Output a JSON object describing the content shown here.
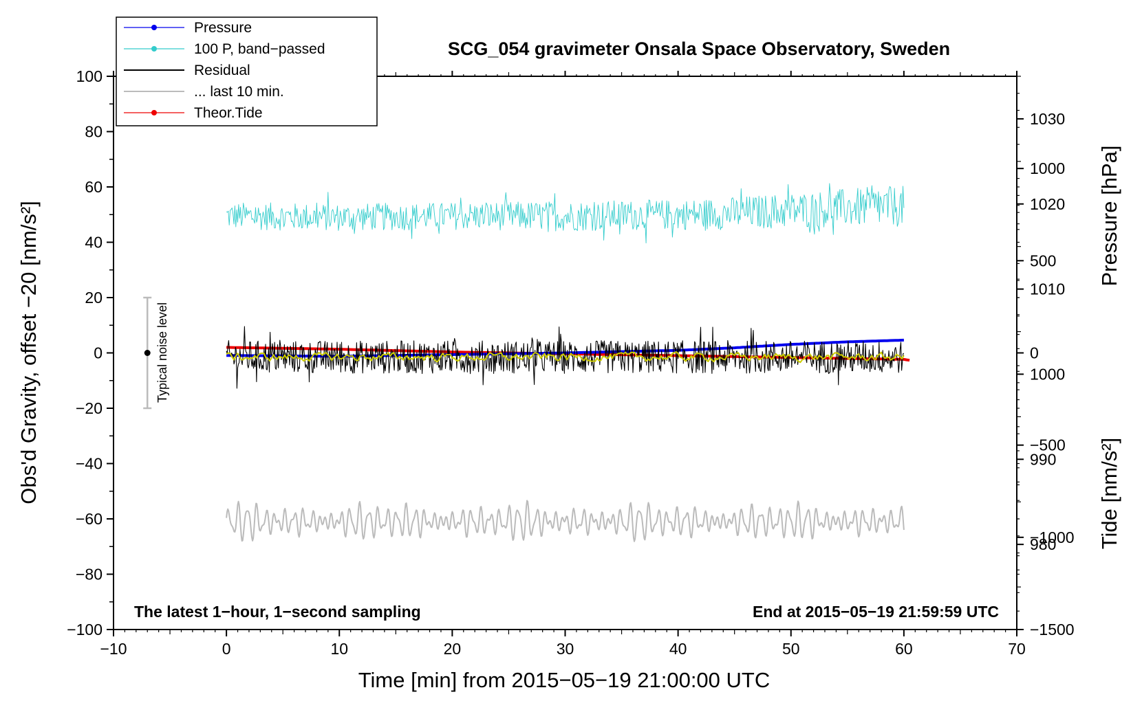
{
  "chart_data": {
    "type": "line",
    "title": "SCG_054 gravimeter Onsala Space Observatory, Sweden",
    "xlabel": "Time [min] from 2015−05−19 21:00:00 UTC",
    "ylabel_left": "Obs'd Gravity, offset −20 [nm/s²]",
    "ylabel_right_top": "Pressure [hPa]",
    "ylabel_right_bottom": "Tide [nm/s²]",
    "xlim": [
      -10,
      70
    ],
    "ylim_left": [
      -100,
      100
    ],
    "pressure_axis_range": [
      970,
      1035
    ],
    "tide_axis_range": [
      -1500,
      1500
    ],
    "x_ticks": [
      {
        "v": -10,
        "label": "−10"
      },
      {
        "v": 0,
        "label": "0"
      },
      {
        "v": 10,
        "label": "10"
      },
      {
        "v": 20,
        "label": "20"
      },
      {
        "v": 30,
        "label": "30"
      },
      {
        "v": 40,
        "label": "40"
      },
      {
        "v": 50,
        "label": "50"
      },
      {
        "v": 60,
        "label": "60"
      },
      {
        "v": 70,
        "label": "70"
      }
    ],
    "y_ticks_left": [
      {
        "v": 100,
        "label": "100"
      },
      {
        "v": 80,
        "label": "80"
      },
      {
        "v": 60,
        "label": "60"
      },
      {
        "v": 40,
        "label": "40"
      },
      {
        "v": 20,
        "label": "20"
      },
      {
        "v": 0,
        "label": "0"
      },
      {
        "v": -20,
        "label": "−20"
      },
      {
        "v": -40,
        "label": "−40"
      },
      {
        "v": -60,
        "label": "−60"
      },
      {
        "v": -80,
        "label": "−80"
      },
      {
        "v": -100,
        "label": "−100"
      }
    ],
    "pressure_ticks": [
      {
        "v": 1030,
        "label": "1030"
      },
      {
        "v": 1020,
        "label": "1020"
      },
      {
        "v": 1010,
        "label": "1010"
      },
      {
        "v": 1000,
        "label": "1000"
      },
      {
        "v": 990,
        "label": "990"
      },
      {
        "v": 980,
        "label": "980"
      }
    ],
    "tide_ticks": [
      {
        "v": 1000,
        "label": "1000"
      },
      {
        "v": 500,
        "label": "500"
      },
      {
        "v": 0,
        "label": "0"
      },
      {
        "v": -500,
        "label": "−500"
      },
      {
        "v": -1000,
        "label": "−1000"
      },
      {
        "v": -1500,
        "label": "−1500"
      }
    ],
    "legend": [
      {
        "label": "Pressure",
        "color": "#0000ee",
        "marker": true
      },
      {
        "label": "100 P, band−passed",
        "color": "#33cccc",
        "marker": true
      },
      {
        "label": "Residual",
        "color": "#000000",
        "marker": false
      },
      {
        "label": "... last 10 min.",
        "color": "#bbbbbb",
        "marker": false
      },
      {
        "label": "Theor.Tide",
        "color": "#ee0000",
        "marker": true
      }
    ],
    "series": [
      {
        "name": "Pressure",
        "axis": "pressure",
        "color": "#0000ee",
        "style": "thick",
        "x": [
          0,
          10,
          20,
          30,
          40,
          45,
          50,
          55,
          60
        ],
        "y": [
          1002.2,
          1002.1,
          1002.3,
          1002.5,
          1002.8,
          1003.1,
          1003.5,
          1003.8,
          1004.0
        ]
      },
      {
        "name": "100 P, band-passed",
        "axis": "left",
        "color": "#33cccc",
        "style": "noise",
        "x": [
          0,
          10,
          20,
          30,
          40,
          45,
          50,
          55,
          60
        ],
        "center": [
          49.5,
          49.0,
          49.5,
          49.5,
          50.0,
          50.5,
          51.5,
          52.5,
          53.0
        ],
        "amplitude": [
          5,
          5,
          5,
          5.5,
          5.5,
          6,
          6.5,
          7,
          7.5
        ]
      },
      {
        "name": "Residual",
        "axis": "left",
        "color": "#000000",
        "style": "noise",
        "x": [
          0,
          30,
          60
        ],
        "center": [
          -1.5,
          -1.5,
          -1.5
        ],
        "amplitude": [
          6,
          6,
          6
        ]
      },
      {
        "name": "Residual (smoothed)",
        "axis": "left",
        "color": "#cccc00",
        "style": "smooth",
        "x": [
          0,
          30,
          60
        ],
        "center": [
          -1.5,
          -1.5,
          -1.5
        ],
        "amplitude": [
          1.3,
          1.3,
          1.3
        ]
      },
      {
        "name": "Theor.Tide",
        "axis": "tide",
        "color": "#ee0000",
        "style": "thick",
        "x": [
          0,
          10,
          20,
          30,
          40,
          50,
          60,
          60.5
        ],
        "y": [
          30,
          20,
          5,
          -5,
          -15,
          -25,
          -35,
          -40
        ]
      },
      {
        "name": "... last 10 min.",
        "axis": "left",
        "color": "#bbbbbb",
        "style": "wave",
        "x": [
          0,
          60
        ],
        "center": [
          -61,
          -61
        ],
        "amplitude": [
          6,
          6
        ]
      }
    ],
    "noise_bar": {
      "label": "Typical noise level",
      "x": -7,
      "center": 0,
      "low": -20,
      "high": 20
    },
    "annotations": {
      "left": "The latest 1−hour, 1−second sampling",
      "right": "End at 2015−05−19 21:59:59 UTC"
    }
  }
}
